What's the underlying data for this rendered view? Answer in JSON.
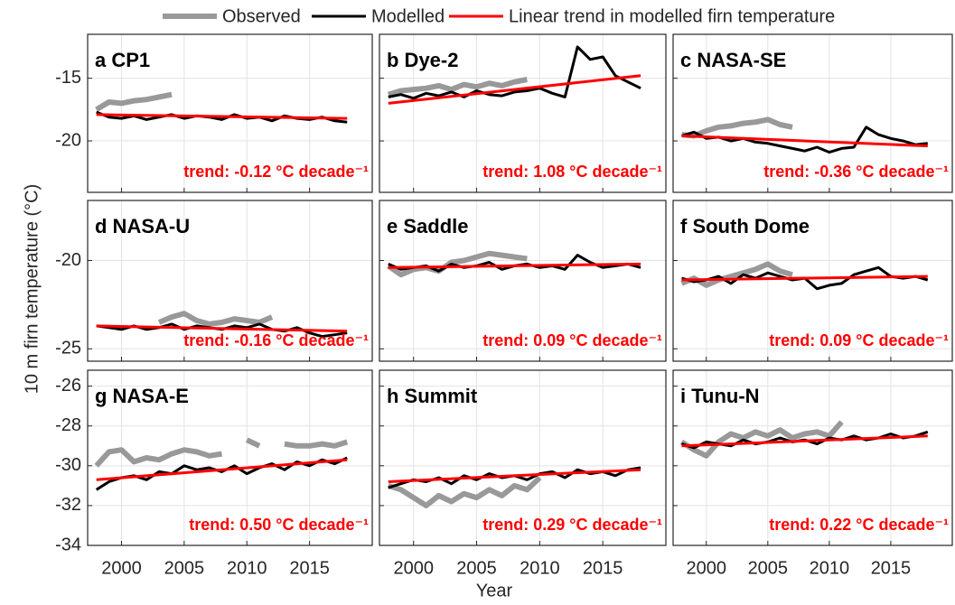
{
  "figure": {
    "xlabel": "Year",
    "ylabel": "10 m firn temperature (°C)"
  },
  "chart_data": [
    {
      "type": "line",
      "title": "a CP1",
      "annotation": "trend: -0.12 °C decade⁻¹",
      "xlim": [
        1997.3,
        2020
      ],
      "xticks": [
        2000,
        2005,
        2010,
        2015
      ],
      "ylim": [
        -24.1,
        -11.5
      ],
      "yticks": [
        -15,
        -20
      ],
      "grid": true,
      "series": [
        {
          "name": "Observed",
          "color": "#999999",
          "x": [
            1998,
            1999,
            2000,
            2001,
            2002,
            2003,
            2004
          ],
          "values": [
            -17.5,
            -16.9,
            -17.0,
            -16.8,
            -16.7,
            -16.5,
            -16.3
          ]
        },
        {
          "name": "Modelled",
          "color": "#000000",
          "x": [
            1998,
            1999,
            2000,
            2001,
            2002,
            2003,
            2004,
            2005,
            2006,
            2007,
            2008,
            2009,
            2010,
            2011,
            2012,
            2013,
            2014,
            2015,
            2016,
            2017,
            2018
          ],
          "values": [
            -17.7,
            -18.1,
            -18.2,
            -18.0,
            -18.3,
            -18.1,
            -17.9,
            -18.2,
            -18.0,
            -18.1,
            -18.3,
            -17.9,
            -18.2,
            -18.1,
            -18.4,
            -18.0,
            -18.2,
            -18.3,
            -18.1,
            -18.4,
            -18.5
          ]
        },
        {
          "name": "Linear trend in modelled firn temperature",
          "color": "#ff0000",
          "x": [
            1998,
            2018
          ],
          "values": [
            -17.9,
            -18.2
          ]
        }
      ]
    },
    {
      "type": "line",
      "title": "b Dye-2",
      "annotation": "trend: 1.08 °C decade⁻¹",
      "xlim": [
        1997.3,
        2020
      ],
      "xticks": [
        2000,
        2005,
        2010,
        2015
      ],
      "ylim": [
        -24.1,
        -11.5
      ],
      "yticks": [
        -15,
        -20
      ],
      "grid": true,
      "series": [
        {
          "name": "Observed",
          "color": "#999999",
          "x": [
            1998,
            1999,
            2000,
            2001,
            2002,
            2003,
            2004,
            2005,
            2006,
            2007,
            2008,
            2009
          ],
          "values": [
            -16.3,
            -16.0,
            -15.9,
            -15.8,
            -15.6,
            -15.9,
            -15.5,
            -15.7,
            -15.4,
            -15.6,
            -15.3,
            -15.1
          ]
        },
        {
          "name": "Modelled",
          "color": "#000000",
          "x": [
            1998,
            1999,
            2000,
            2001,
            2002,
            2003,
            2004,
            2005,
            2006,
            2007,
            2008,
            2009,
            2010,
            2011,
            2012,
            2013,
            2014,
            2015,
            2016,
            2017,
            2018
          ],
          "values": [
            -16.5,
            -16.3,
            -16.6,
            -16.2,
            -16.4,
            -16.1,
            -16.5,
            -16.0,
            -16.3,
            -16.4,
            -16.1,
            -16.0,
            -15.8,
            -16.2,
            -16.5,
            -12.5,
            -13.5,
            -13.3,
            -14.8,
            -15.3,
            -15.8
          ]
        },
        {
          "name": "Linear trend in modelled firn temperature",
          "color": "#ff0000",
          "x": [
            1998,
            2018
          ],
          "values": [
            -17.0,
            -14.8
          ]
        }
      ]
    },
    {
      "type": "line",
      "title": "c NASA-SE",
      "annotation": "trend: -0.36 °C decade⁻¹",
      "xlim": [
        1997.3,
        2020
      ],
      "xticks": [
        2000,
        2005,
        2010,
        2015
      ],
      "ylim": [
        -24.1,
        -11.5
      ],
      "yticks": [
        -15,
        -20
      ],
      "grid": true,
      "series": [
        {
          "name": "Observed",
          "color": "#999999",
          "x": [
            1998,
            1999,
            2000,
            2001,
            2002,
            2003,
            2004,
            2005,
            2006,
            2007
          ],
          "values": [
            -19.5,
            -19.6,
            -19.2,
            -18.9,
            -18.8,
            -18.6,
            -18.5,
            -18.3,
            -18.7,
            -18.9
          ]
        },
        {
          "name": "Modelled",
          "color": "#000000",
          "x": [
            1998,
            1999,
            2000,
            2001,
            2002,
            2003,
            2004,
            2005,
            2006,
            2007,
            2008,
            2009,
            2010,
            2011,
            2012,
            2013,
            2014,
            2015,
            2016,
            2017,
            2018
          ],
          "values": [
            -19.6,
            -19.3,
            -19.8,
            -19.7,
            -20.0,
            -19.8,
            -20.1,
            -20.2,
            -20.4,
            -20.6,
            -20.8,
            -20.5,
            -20.9,
            -20.6,
            -20.5,
            -18.9,
            -19.5,
            -19.8,
            -20.0,
            -20.3,
            -20.2
          ]
        },
        {
          "name": "Linear trend in modelled firn temperature",
          "color": "#ff0000",
          "x": [
            1998,
            2018
          ],
          "values": [
            -19.6,
            -20.4
          ]
        }
      ]
    },
    {
      "type": "line",
      "title": "d NASA-U",
      "annotation": "trend: -0.16 °C decade⁻¹",
      "xlim": [
        1997.3,
        2020
      ],
      "xticks": [
        2000,
        2005,
        2010,
        2015
      ],
      "ylim": [
        -25.7,
        -16.6
      ],
      "yticks": [
        -20,
        -25
      ],
      "grid": true,
      "series": [
        {
          "name": "Observed",
          "color": "#999999",
          "x": [
            2003,
            2004,
            2005,
            2006,
            2007,
            2008,
            2009,
            2010,
            2011,
            2012
          ],
          "values": [
            -23.5,
            -23.2,
            -23.0,
            -23.4,
            -23.6,
            -23.5,
            -23.3,
            -23.4,
            -23.5,
            -23.2
          ]
        },
        {
          "name": "Modelled",
          "color": "#000000",
          "x": [
            1998,
            1999,
            2000,
            2001,
            2002,
            2003,
            2004,
            2005,
            2006,
            2007,
            2008,
            2009,
            2010,
            2011,
            2012,
            2013,
            2014,
            2015,
            2016,
            2017,
            2018
          ],
          "values": [
            -23.7,
            -23.8,
            -23.9,
            -23.7,
            -23.9,
            -23.8,
            -23.6,
            -23.9,
            -23.7,
            -23.8,
            -23.9,
            -23.7,
            -23.8,
            -23.6,
            -23.9,
            -24.0,
            -23.8,
            -24.1,
            -24.3,
            -24.2,
            -24.1
          ]
        },
        {
          "name": "Linear trend in modelled firn temperature",
          "color": "#ff0000",
          "x": [
            1998,
            2018
          ],
          "values": [
            -23.7,
            -24.0
          ]
        }
      ]
    },
    {
      "type": "line",
      "title": "e Saddle",
      "annotation": "trend: 0.09 °C decade⁻¹",
      "xlim": [
        1997.3,
        2020
      ],
      "xticks": [
        2000,
        2005,
        2010,
        2015
      ],
      "ylim": [
        -25.7,
        -16.6
      ],
      "yticks": [
        -20,
        -25
      ],
      "grid": true,
      "series": [
        {
          "name": "Observed",
          "color": "#999999",
          "x": [
            1998,
            1999,
            2000,
            2001,
            2002,
            2003,
            2004,
            2005,
            2006,
            2007,
            2008,
            2009
          ],
          "values": [
            -20.3,
            -20.8,
            -20.5,
            -20.4,
            -20.6,
            -20.1,
            -20.0,
            -19.8,
            -19.6,
            -19.7,
            -19.8,
            -19.9
          ]
        },
        {
          "name": "Modelled",
          "color": "#000000",
          "x": [
            1998,
            1999,
            2000,
            2001,
            2002,
            2003,
            2004,
            2005,
            2006,
            2007,
            2008,
            2009,
            2010,
            2011,
            2012,
            2013,
            2014,
            2015,
            2016,
            2017,
            2018
          ],
          "values": [
            -20.2,
            -20.5,
            -20.4,
            -20.3,
            -20.6,
            -20.2,
            -20.4,
            -20.3,
            -20.1,
            -20.5,
            -20.3,
            -20.2,
            -20.4,
            -20.3,
            -20.5,
            -19.7,
            -20.1,
            -20.4,
            -20.3,
            -20.2,
            -20.4
          ]
        },
        {
          "name": "Linear trend in modelled firn temperature",
          "color": "#ff0000",
          "x": [
            1998,
            2018
          ],
          "values": [
            -20.4,
            -20.2
          ]
        }
      ]
    },
    {
      "type": "line",
      "title": "f South Dome",
      "annotation": "trend: 0.09 °C decade⁻¹",
      "xlim": [
        1997.3,
        2020
      ],
      "xticks": [
        2000,
        2005,
        2010,
        2015
      ],
      "ylim": [
        -25.7,
        -16.6
      ],
      "yticks": [
        -20,
        -25
      ],
      "grid": true,
      "series": [
        {
          "name": "Observed",
          "color": "#999999",
          "x": [
            1998,
            1999,
            2000,
            2001,
            2002,
            2003,
            2004,
            2005,
            2006,
            2007
          ],
          "values": [
            -21.3,
            -21.0,
            -21.4,
            -21.1,
            -20.9,
            -20.7,
            -20.5,
            -20.2,
            -20.6,
            -20.8
          ]
        },
        {
          "name": "Modelled",
          "color": "#000000",
          "x": [
            1998,
            1999,
            2000,
            2001,
            2002,
            2003,
            2004,
            2005,
            2006,
            2007,
            2008,
            2009,
            2010,
            2011,
            2012,
            2013,
            2014,
            2015,
            2016,
            2017,
            2018
          ],
          "values": [
            -21.0,
            -21.2,
            -21.1,
            -20.9,
            -21.3,
            -20.8,
            -21.0,
            -20.7,
            -20.9,
            -21.1,
            -21.0,
            -21.6,
            -21.4,
            -21.3,
            -20.8,
            -20.6,
            -20.4,
            -20.9,
            -21.0,
            -20.9,
            -21.1
          ]
        },
        {
          "name": "Linear trend in modelled firn temperature",
          "color": "#ff0000",
          "x": [
            1998,
            2018
          ],
          "values": [
            -21.1,
            -20.9
          ]
        }
      ]
    },
    {
      "type": "line",
      "title": "g NASA-E",
      "annotation": "trend: 0.50 °C decade⁻¹",
      "xlim": [
        1997.3,
        2020
      ],
      "xticks": [
        2000,
        2005,
        2010,
        2015
      ],
      "ylim": [
        -34,
        -25.2
      ],
      "yticks": [
        -26,
        -28,
        -30,
        -32,
        -34
      ],
      "grid": true,
      "series": [
        {
          "name": "Observed",
          "color": "#999999",
          "x": [
            1998,
            1999,
            2000,
            2001,
            2002,
            2003,
            2004,
            2005,
            2006,
            2007,
            2008,
            2009,
            2010,
            2011,
            2012,
            2013,
            2014,
            2015,
            2016,
            2017,
            2018
          ],
          "values": [
            -30.0,
            -29.3,
            -29.2,
            -29.8,
            -29.6,
            -29.7,
            -29.4,
            -29.2,
            -29.3,
            -29.5,
            -29.4,
            null,
            -28.7,
            -29.0,
            null,
            -28.9,
            -29.0,
            -29.0,
            -28.9,
            -29.0,
            -28.8
          ]
        },
        {
          "name": "Modelled",
          "color": "#000000",
          "x": [
            1998,
            1999,
            2000,
            2001,
            2002,
            2003,
            2004,
            2005,
            2006,
            2007,
            2008,
            2009,
            2010,
            2011,
            2012,
            2013,
            2014,
            2015,
            2016,
            2017,
            2018
          ],
          "values": [
            -31.2,
            -30.8,
            -30.6,
            -30.5,
            -30.7,
            -30.3,
            -30.4,
            -30.0,
            -30.2,
            -30.1,
            -30.3,
            -30.0,
            -30.4,
            -30.1,
            -29.9,
            -30.2,
            -29.8,
            -30.0,
            -29.7,
            -29.9,
            -29.6
          ]
        },
        {
          "name": "Linear trend in modelled firn temperature",
          "color": "#ff0000",
          "x": [
            1998,
            2018
          ],
          "values": [
            -30.7,
            -29.7
          ]
        }
      ]
    },
    {
      "type": "line",
      "title": "h Summit",
      "annotation": "trend: 0.29 °C decade⁻¹",
      "xlim": [
        1997.3,
        2020
      ],
      "xticks": [
        2000,
        2005,
        2010,
        2015
      ],
      "ylim": [
        -34,
        -25.2
      ],
      "yticks": [
        -26,
        -28,
        -30,
        -32,
        -34
      ],
      "grid": true,
      "series": [
        {
          "name": "Observed",
          "color": "#999999",
          "x": [
            1998,
            1999,
            2000,
            2001,
            2002,
            2003,
            2004,
            2005,
            2006,
            2007,
            2008,
            2009,
            2010
          ],
          "values": [
            -31.0,
            -31.2,
            -31.6,
            -32.0,
            -31.5,
            -31.8,
            -31.4,
            -31.6,
            -31.2,
            -31.5,
            -31.0,
            -31.2,
            -30.6
          ]
        },
        {
          "name": "Modelled",
          "color": "#000000",
          "x": [
            1998,
            1999,
            2000,
            2001,
            2002,
            2003,
            2004,
            2005,
            2006,
            2007,
            2008,
            2009,
            2010,
            2011,
            2012,
            2013,
            2014,
            2015,
            2016,
            2017,
            2018
          ],
          "values": [
            -31.1,
            -30.9,
            -30.7,
            -30.8,
            -30.6,
            -30.9,
            -30.5,
            -30.7,
            -30.4,
            -30.6,
            -30.5,
            -30.7,
            -30.4,
            -30.3,
            -30.6,
            -30.2,
            -30.4,
            -30.3,
            -30.5,
            -30.2,
            -30.1
          ]
        },
        {
          "name": "Linear trend in modelled firn temperature",
          "color": "#ff0000",
          "x": [
            1998,
            2018
          ],
          "values": [
            -30.8,
            -30.2
          ]
        }
      ]
    },
    {
      "type": "line",
      "title": "i Tunu-N",
      "annotation": "trend: 0.22 °C decade⁻¹",
      "xlim": [
        1997.3,
        2020
      ],
      "xticks": [
        2000,
        2005,
        2010,
        2015
      ],
      "ylim": [
        -34,
        -25.2
      ],
      "yticks": [
        -26,
        -28,
        -30,
        -32,
        -34
      ],
      "grid": true,
      "series": [
        {
          "name": "Observed",
          "color": "#999999",
          "x": [
            1998,
            1999,
            2000,
            2001,
            2002,
            2003,
            2004,
            2005,
            2006,
            2007,
            2008,
            2009,
            2010,
            2011
          ],
          "values": [
            -28.8,
            -29.2,
            -29.5,
            -28.8,
            -28.4,
            -28.6,
            -28.3,
            -28.5,
            -28.2,
            -28.6,
            -28.4,
            -28.3,
            -28.5,
            -27.8
          ]
        },
        {
          "name": "Modelled",
          "color": "#000000",
          "x": [
            1998,
            1999,
            2000,
            2001,
            2002,
            2003,
            2004,
            2005,
            2006,
            2007,
            2008,
            2009,
            2010,
            2011,
            2012,
            2013,
            2014,
            2015,
            2016,
            2017,
            2018
          ],
          "values": [
            -28.9,
            -29.1,
            -28.8,
            -28.9,
            -29.0,
            -28.7,
            -28.9,
            -28.8,
            -28.6,
            -28.8,
            -28.7,
            -28.9,
            -28.6,
            -28.7,
            -28.5,
            -28.7,
            -28.6,
            -28.4,
            -28.6,
            -28.5,
            -28.3
          ]
        },
        {
          "name": "Linear trend in modelled firn temperature",
          "color": "#ff0000",
          "x": [
            1998,
            2018
          ],
          "values": [
            -29.0,
            -28.5
          ]
        }
      ]
    }
  ]
}
